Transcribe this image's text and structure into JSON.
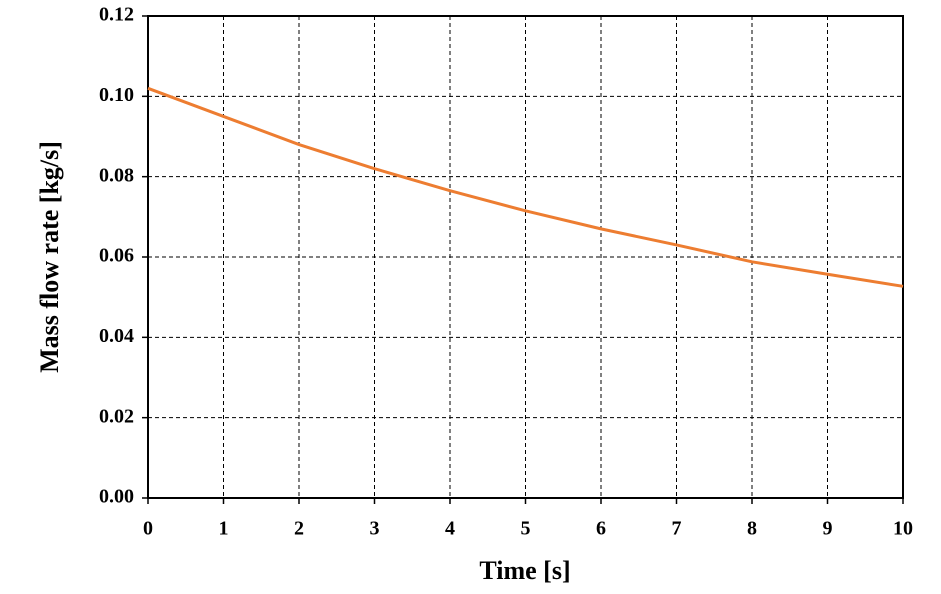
{
  "chart_data": {
    "type": "line",
    "x_label": "Time [s]",
    "y_label": "Mass flow rate [kg/s]",
    "x": [
      0,
      1,
      2,
      3,
      4,
      5,
      6,
      7,
      8,
      9,
      10
    ],
    "series": [
      {
        "name": "Mass flow rate",
        "color": "#ed7d31",
        "values": [
          0.102,
          0.095,
          0.088,
          0.082,
          0.0765,
          0.0715,
          0.067,
          0.063,
          0.0588,
          0.0557,
          0.0527
        ]
      }
    ],
    "xlim": [
      0,
      10
    ],
    "xticks": [
      0,
      1,
      2,
      3,
      4,
      5,
      6,
      7,
      8,
      9,
      10
    ],
    "ylim": [
      0,
      0.12
    ],
    "yticks": [
      {
        "value": 0,
        "label": "0.00"
      },
      0.02,
      0.04,
      0.06,
      0.08,
      {
        "value": 0.1,
        "label": "0.10"
      },
      0.12
    ],
    "grid": true
  }
}
